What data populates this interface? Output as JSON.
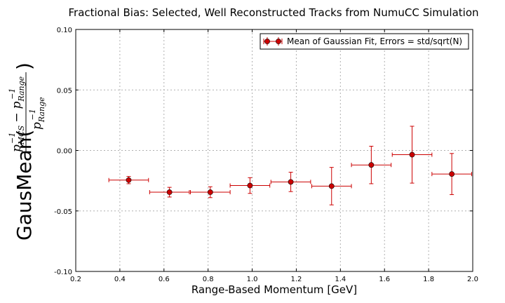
{
  "chart_data": {
    "type": "scatter",
    "title": "Fractional Bias: Selected, Well Reconstructed Tracks from NumuCC Simulation",
    "xlabel": "Range-Based Momentum [GeV]",
    "ylabel": {
      "prefix": "GausMean(",
      "numerator": "p_MCS^-1 − p_Range^-1",
      "denominator": "p_Range^-1",
      "suffix": ")"
    },
    "xlim": [
      0.2,
      2.0
    ],
    "ylim": [
      -0.1,
      0.1
    ],
    "xticks": [
      "0.2",
      "0.4",
      "0.6",
      "0.8",
      "1.0",
      "1.2",
      "1.4",
      "1.6",
      "1.8",
      "2.0"
    ],
    "yticks": [
      "-0.10",
      "-0.05",
      "0.00",
      "0.05",
      "0.10"
    ],
    "grid": true,
    "legend_position": "top-right",
    "series": [
      {
        "name": "Mean of Gaussian Fit, Errors = std/sqrt(N)",
        "color": "#cc0000",
        "marker": "circle",
        "points": [
          {
            "x": 0.44,
            "y": -0.0245,
            "xerr": 0.09,
            "yerr": 0.003
          },
          {
            "x": 0.625,
            "y": -0.0345,
            "xerr": 0.09,
            "yerr": 0.004
          },
          {
            "x": 0.81,
            "y": -0.0345,
            "xerr": 0.09,
            "yerr": 0.0045
          },
          {
            "x": 0.99,
            "y": -0.029,
            "xerr": 0.09,
            "yerr": 0.0065
          },
          {
            "x": 1.175,
            "y": -0.026,
            "xerr": 0.09,
            "yerr": 0.008
          },
          {
            "x": 1.36,
            "y": -0.0295,
            "xerr": 0.09,
            "yerr": 0.0155
          },
          {
            "x": 1.54,
            "y": -0.012,
            "xerr": 0.09,
            "yerr": 0.0155
          },
          {
            "x": 1.725,
            "y": -0.0035,
            "xerr": 0.09,
            "yerr": 0.0235
          },
          {
            "x": 1.905,
            "y": -0.0195,
            "xerr": 0.09,
            "yerr": 0.017
          }
        ]
      }
    ]
  }
}
